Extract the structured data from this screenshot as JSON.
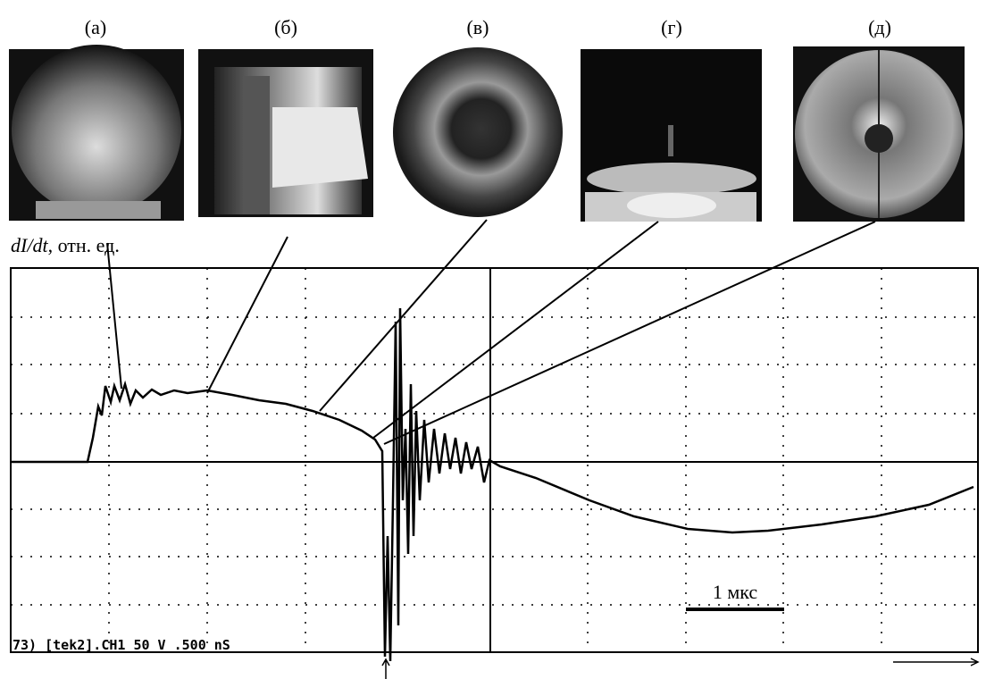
{
  "panels": [
    {
      "label": "(а)"
    },
    {
      "label": "(б)"
    },
    {
      "label": "(в)"
    },
    {
      "label": "(г)"
    },
    {
      "label": "(д)"
    }
  ],
  "y_axis": {
    "symbol": "dI/dt",
    "unit": ", отн. ед."
  },
  "scale_bar_label": "1 мкс",
  "scope_caption": "73) [tek2].CH1  50  V  .500 nS"
}
